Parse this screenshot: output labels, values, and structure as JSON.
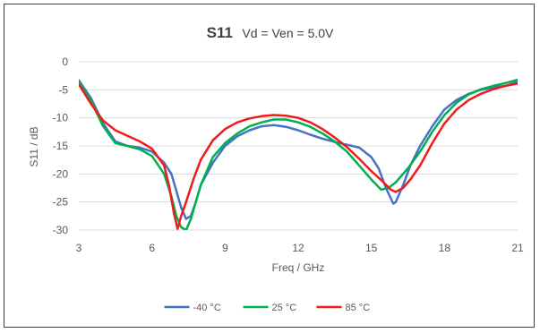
{
  "chart_data": {
    "type": "line",
    "title": "S11",
    "subtitle": "Vd = Ven = 5.0V",
    "xlabel": "Freq / GHz",
    "ylabel": "S11 / dB",
    "xlim": [
      3,
      21
    ],
    "ylim": [
      -30,
      0
    ],
    "x_ticks": [
      3,
      6,
      9,
      12,
      15,
      18,
      21
    ],
    "y_ticks": [
      0,
      -5,
      -10,
      -15,
      -20,
      -25,
      -30
    ],
    "grid": "horizontal",
    "legend_position": "bottom",
    "series": [
      {
        "name": "-40 °C",
        "color": "#4472c4",
        "points": [
          [
            3,
            -3.3
          ],
          [
            3.5,
            -6.5
          ],
          [
            4,
            -11
          ],
          [
            4.5,
            -14.2
          ],
          [
            5,
            -15
          ],
          [
            5.5,
            -15.3
          ],
          [
            6,
            -16
          ],
          [
            6.5,
            -18
          ],
          [
            6.8,
            -20
          ],
          [
            7,
            -23
          ],
          [
            7.2,
            -26
          ],
          [
            7.4,
            -28
          ],
          [
            7.6,
            -27.5
          ],
          [
            7.8,
            -25
          ],
          [
            8,
            -22
          ],
          [
            8.5,
            -18
          ],
          [
            9,
            -15
          ],
          [
            9.5,
            -13.3
          ],
          [
            10,
            -12.2
          ],
          [
            10.5,
            -11.5
          ],
          [
            11,
            -11.3
          ],
          [
            11.5,
            -11.6
          ],
          [
            12,
            -12.2
          ],
          [
            12.5,
            -13
          ],
          [
            13,
            -13.7
          ],
          [
            13.5,
            -14.3
          ],
          [
            14,
            -14.8
          ],
          [
            14.5,
            -15.3
          ],
          [
            15,
            -17
          ],
          [
            15.3,
            -19
          ],
          [
            15.6,
            -22.5
          ],
          [
            15.9,
            -25.3
          ],
          [
            16,
            -25
          ],
          [
            16.3,
            -22
          ],
          [
            16.6,
            -18.5
          ],
          [
            17,
            -15
          ],
          [
            17.5,
            -11.5
          ],
          [
            18,
            -8.5
          ],
          [
            18.5,
            -6.8
          ],
          [
            19,
            -5.7
          ],
          [
            19.5,
            -5
          ],
          [
            20,
            -4.6
          ],
          [
            20.5,
            -4.3
          ],
          [
            21,
            -3.6
          ]
        ]
      },
      {
        "name": "25 °C",
        "color": "#00b050",
        "points": [
          [
            3,
            -3.6
          ],
          [
            3.5,
            -7
          ],
          [
            4,
            -11.5
          ],
          [
            4.5,
            -14.5
          ],
          [
            5,
            -15
          ],
          [
            5.5,
            -15.6
          ],
          [
            6,
            -16.8
          ],
          [
            6.5,
            -20
          ],
          [
            6.8,
            -24
          ],
          [
            7,
            -27.5
          ],
          [
            7.2,
            -29.5
          ],
          [
            7.4,
            -30
          ],
          [
            7.6,
            -28
          ],
          [
            8,
            -22
          ],
          [
            8.5,
            -17
          ],
          [
            9,
            -14.5
          ],
          [
            9.5,
            -12.8
          ],
          [
            10,
            -11.5
          ],
          [
            10.5,
            -10.8
          ],
          [
            11,
            -10.3
          ],
          [
            11.5,
            -10.3
          ],
          [
            12,
            -10.8
          ],
          [
            12.5,
            -11.6
          ],
          [
            13,
            -12.8
          ],
          [
            13.5,
            -14.2
          ],
          [
            14,
            -16
          ],
          [
            14.5,
            -18.5
          ],
          [
            15,
            -21
          ],
          [
            15.4,
            -22.8
          ],
          [
            15.7,
            -22.5
          ],
          [
            16,
            -21.5
          ],
          [
            16.5,
            -19
          ],
          [
            17,
            -16
          ],
          [
            17.5,
            -12.5
          ],
          [
            18,
            -9.5
          ],
          [
            18.5,
            -7.3
          ],
          [
            19,
            -5.8
          ],
          [
            19.5,
            -4.9
          ],
          [
            20,
            -4.3
          ],
          [
            20.5,
            -3.8
          ],
          [
            21,
            -3.2
          ]
        ]
      },
      {
        "name": "85 °C",
        "color": "#ee1c1c",
        "points": [
          [
            3,
            -4
          ],
          [
            3.5,
            -7.5
          ],
          [
            4,
            -10.5
          ],
          [
            4.5,
            -12.2
          ],
          [
            5,
            -13.2
          ],
          [
            5.5,
            -14.2
          ],
          [
            6,
            -15.5
          ],
          [
            6.5,
            -18.5
          ],
          [
            6.7,
            -22
          ],
          [
            6.9,
            -27
          ],
          [
            7.05,
            -29.8
          ],
          [
            7.2,
            -27.5
          ],
          [
            7.4,
            -25
          ],
          [
            7.7,
            -21
          ],
          [
            8,
            -17.5
          ],
          [
            8.5,
            -14
          ],
          [
            9,
            -12
          ],
          [
            9.5,
            -10.8
          ],
          [
            10,
            -10.1
          ],
          [
            10.5,
            -9.7
          ],
          [
            11,
            -9.5
          ],
          [
            11.5,
            -9.6
          ],
          [
            12,
            -10
          ],
          [
            12.5,
            -10.8
          ],
          [
            13,
            -12
          ],
          [
            13.5,
            -13.5
          ],
          [
            14,
            -15.2
          ],
          [
            14.5,
            -17.3
          ],
          [
            15,
            -19.5
          ],
          [
            15.5,
            -21.5
          ],
          [
            15.8,
            -22.8
          ],
          [
            16,
            -23.2
          ],
          [
            16.3,
            -22.5
          ],
          [
            16.6,
            -21
          ],
          [
            17,
            -18.5
          ],
          [
            17.5,
            -14.5
          ],
          [
            18,
            -11
          ],
          [
            18.5,
            -8.5
          ],
          [
            19,
            -6.8
          ],
          [
            19.5,
            -5.7
          ],
          [
            20,
            -4.9
          ],
          [
            20.5,
            -4.3
          ],
          [
            21,
            -3.9
          ]
        ]
      }
    ]
  }
}
